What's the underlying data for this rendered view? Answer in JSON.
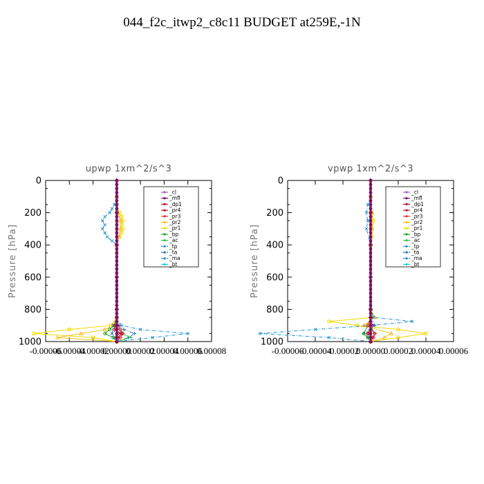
{
  "page_title": "044_f2c_itwp2_c8c11  BUDGET at259E,-1N",
  "legend_entries": [
    "_cl",
    "_mfl",
    "_dp1",
    "_pr4",
    "_pr3",
    "_pr2",
    "_pr1",
    "_bp",
    "_ac",
    "_tp",
    "_ta",
    "_ma",
    "_bt"
  ],
  "series_colors": {
    "_cl": "#9b59d0",
    "_mfl": "#7b0a5a",
    "_dp1": "#c01030",
    "_pr4": "#c01030",
    "_pr3": "#e03030",
    "_pr2": "#f0c020",
    "_pr1": "#f0d800",
    "_bp": "#20a020",
    "_ac": "#30c050",
    "_tp": "#1f8fd0",
    "_ta": "#1f6fb0",
    "_ma": "#2080c0",
    "_bt": "#10d0e0"
  },
  "chart_data": [
    {
      "type": "line",
      "title": "upwp   1xm^2/s^3",
      "ylabel": "Pressure [hPa]",
      "xlabel": "",
      "ylim": [
        1000,
        0
      ],
      "xlim": [
        -6e-05,
        8e-05
      ],
      "y_ticks": [
        0,
        200,
        400,
        600,
        800,
        1000
      ],
      "x_tick_labels": [
        "-0.00006",
        "-0.00004",
        "-0.00002",
        "0.00000",
        "0.00002",
        "0.00004",
        "0.00006",
        "0.00008"
      ],
      "series": [
        {
          "name": "_pr1",
          "pressure": [
            100,
            150,
            200,
            225,
            250,
            275,
            300,
            325,
            350,
            400,
            450,
            800,
            850,
            900,
            925,
            950,
            975,
            1000
          ],
          "values": [
            0,
            0,
            2e-06,
            4e-06,
            5e-06,
            4e-06,
            5e-06,
            4e-06,
            2e-06,
            0,
            0,
            0,
            0,
            -5e-06,
            -4e-05,
            -7e-05,
            -2e-05,
            0
          ]
        },
        {
          "name": "_pr2",
          "pressure": [
            100,
            200,
            250,
            300,
            350,
            400,
            850,
            900,
            925,
            950,
            975,
            1000
          ],
          "values": [
            0,
            1e-06,
            3e-06,
            3e-06,
            2e-06,
            0,
            0,
            -3e-06,
            -1e-05,
            -3e-05,
            -5e-05,
            0
          ]
        },
        {
          "name": "_tp",
          "pressure": [
            100,
            150,
            175,
            200,
            225,
            250,
            275,
            300,
            325,
            350,
            375,
            400,
            800,
            850,
            900,
            925,
            950,
            975,
            1000
          ],
          "values": [
            0,
            -2e-06,
            -4e-06,
            -6e-06,
            -1e-05,
            -1.2e-05,
            -1e-05,
            -1.2e-05,
            -1e-05,
            -8e-06,
            -4e-06,
            0,
            0,
            0,
            4e-06,
            2e-05,
            6e-05,
            3e-05,
            0
          ]
        },
        {
          "name": "_ta",
          "pressure": [
            850,
            900,
            925,
            950,
            975,
            1000
          ],
          "values": [
            0,
            2e-06,
            6e-06,
            1.5e-05,
            1e-05,
            0
          ]
        },
        {
          "name": "_ma",
          "pressure": [
            850,
            900,
            950,
            975,
            1000
          ],
          "values": [
            0,
            -3e-06,
            -4e-06,
            -2e-06,
            0
          ]
        },
        {
          "name": "_bp",
          "pressure": [
            850,
            900,
            925,
            950,
            975,
            1000
          ],
          "values": [
            0,
            -2e-06,
            -6e-06,
            -1e-05,
            -3e-06,
            0
          ]
        },
        {
          "name": "_ac",
          "pressure": [
            900,
            950,
            975,
            1000
          ],
          "values": [
            0,
            4e-06,
            1.2e-05,
            0
          ]
        },
        {
          "name": "_pr3",
          "pressure": [
            850,
            900,
            925,
            950,
            975,
            1000
          ],
          "values": [
            0,
            1e-06,
            3e-06,
            5e-06,
            3e-06,
            0
          ]
        },
        {
          "name": "_pr4",
          "pressure": [
            850,
            900,
            925,
            950,
            975,
            1000
          ],
          "values": [
            0,
            -1e-06,
            -2e-06,
            4e-06,
            1e-06,
            0
          ]
        },
        {
          "name": "_dp1",
          "pressure": [
            0,
            200,
            400,
            600,
            800,
            900,
            950,
            1000
          ],
          "values": [
            0,
            0,
            0,
            0,
            0,
            0,
            1e-06,
            0
          ]
        },
        {
          "name": "_mfl",
          "pressure": [
            0,
            200,
            400,
            600,
            800,
            1000
          ],
          "values": [
            0,
            0,
            0,
            0,
            0,
            0
          ]
        }
      ]
    },
    {
      "type": "line",
      "title": "vpwp   1xm^2/s^3",
      "ylabel": "Pressure [hPa]",
      "xlabel": "",
      "ylim": [
        1000,
        0
      ],
      "xlim": [
        -6e-05,
        6e-05
      ],
      "y_ticks": [
        0,
        200,
        400,
        600,
        800,
        1000
      ],
      "x_tick_labels": [
        "-0.00006",
        "-0.00004",
        "-0.00002",
        "0.00000",
        "0.00002",
        "0.00004",
        "0.00006"
      ],
      "series": [
        {
          "name": "_pr1",
          "pressure": [
            100,
            200,
            250,
            300,
            350,
            400,
            800,
            850,
            875,
            900,
            925,
            950,
            975,
            1000
          ],
          "values": [
            0,
            1e-06,
            2e-06,
            1e-06,
            1e-06,
            0,
            0,
            2e-06,
            -3e-05,
            -1e-05,
            2e-05,
            4e-05,
            2e-05,
            0
          ]
        },
        {
          "name": "_pr2",
          "pressure": [
            100,
            200,
            300,
            400,
            800,
            850,
            900,
            950,
            975,
            1000
          ],
          "values": [
            0,
            1e-06,
            1e-06,
            0,
            0,
            3e-06,
            -5e-06,
            1.5e-05,
            1e-05,
            0
          ]
        },
        {
          "name": "_tp",
          "pressure": [
            100,
            150,
            200,
            250,
            300,
            400,
            800,
            850,
            875,
            900,
            925,
            950,
            975,
            1000
          ],
          "values": [
            0,
            -2e-06,
            -3e-06,
            -2e-06,
            -3e-06,
            0,
            0,
            2e-06,
            3e-05,
            0,
            -4e-05,
            -8e-05,
            -3e-05,
            0
          ]
        },
        {
          "name": "_ta",
          "pressure": [
            850,
            900,
            950,
            975,
            1000
          ],
          "values": [
            0,
            3e-06,
            -5e-06,
            -2e-06,
            0
          ]
        },
        {
          "name": "_ma",
          "pressure": [
            850,
            900,
            950,
            1000
          ],
          "values": [
            0,
            2e-06,
            -2e-06,
            0
          ]
        },
        {
          "name": "_bp",
          "pressure": [
            850,
            900,
            950,
            975,
            1000
          ],
          "values": [
            0,
            -2e-06,
            -5e-06,
            -2e-06,
            0
          ]
        },
        {
          "name": "_ac",
          "pressure": [
            900,
            950,
            1000
          ],
          "values": [
            0,
            3e-06,
            0
          ]
        },
        {
          "name": "_pr3",
          "pressure": [
            850,
            900,
            950,
            975,
            1000
          ],
          "values": [
            0,
            -2e-06,
            3e-06,
            2e-06,
            0
          ]
        },
        {
          "name": "_pr4",
          "pressure": [
            850,
            900,
            950,
            975,
            1000
          ],
          "values": [
            0,
            1e-06,
            -2e-06,
            1e-06,
            0
          ]
        },
        {
          "name": "_dp1",
          "pressure": [
            0,
            400,
            800,
            1000
          ],
          "values": [
            0,
            0,
            0,
            0
          ]
        },
        {
          "name": "_mfl",
          "pressure": [
            0,
            200,
            400,
            600,
            800,
            1000
          ],
          "values": [
            0,
            0,
            0,
            0,
            0,
            0
          ]
        }
      ]
    }
  ]
}
